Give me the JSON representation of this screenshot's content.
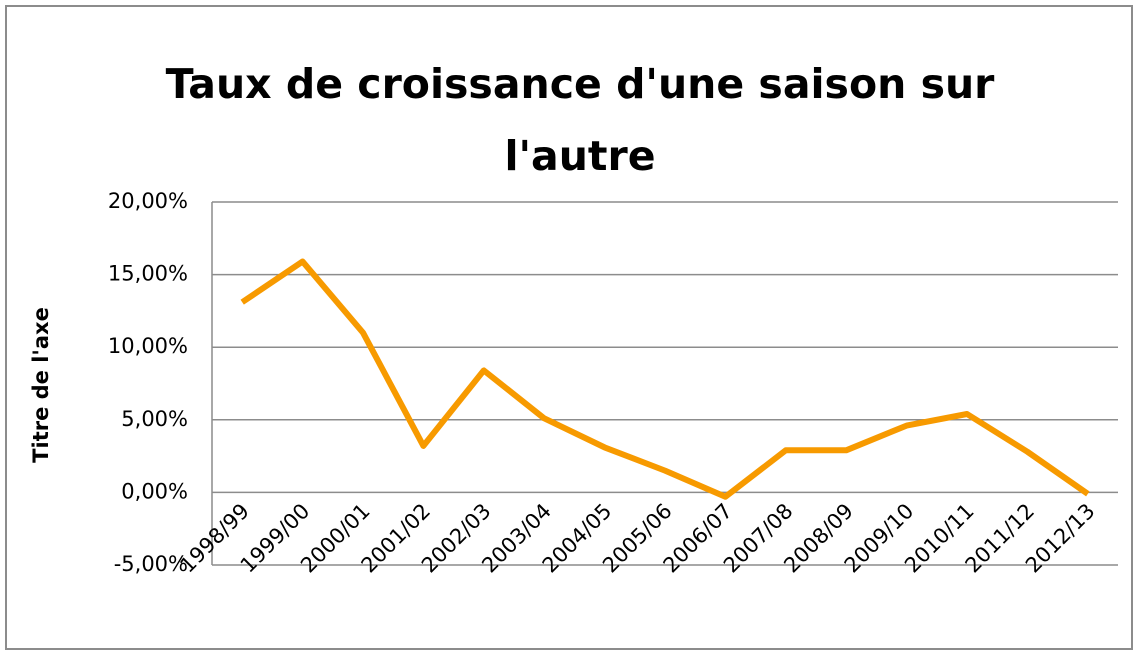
{
  "chart_data": {
    "type": "line",
    "title": "Taux de croissance d'une saison sur l'autre",
    "y_axis_label": "Titre de l'axe",
    "categories": [
      "1998/99",
      "1999/00",
      "2000/01",
      "2001/02",
      "2002/03",
      "2003/04",
      "2004/05",
      "2005/06",
      "2006/07",
      "2007/08",
      "2008/09",
      "2009/10",
      "2010/11",
      "2011/12",
      "2012/13"
    ],
    "series": [
      {
        "name": "Taux de croissance",
        "color": "#f79a00",
        "values": [
          13.1,
          15.9,
          11.0,
          3.2,
          8.4,
          5.1,
          3.1,
          1.5,
          -0.3,
          2.9,
          2.9,
          4.6,
          5.4,
          2.8,
          -0.1
        ]
      }
    ],
    "ylim": [
      -5,
      20
    ],
    "yticks": [
      {
        "value": -5,
        "label": "-5,00%"
      },
      {
        "value": 0,
        "label": "0,00%"
      },
      {
        "value": 5,
        "label": "5,00%"
      },
      {
        "value": 10,
        "label": "10,00%"
      },
      {
        "value": 15,
        "label": "15,00%"
      },
      {
        "value": 20,
        "label": "20,00%"
      }
    ],
    "grid": true
  }
}
